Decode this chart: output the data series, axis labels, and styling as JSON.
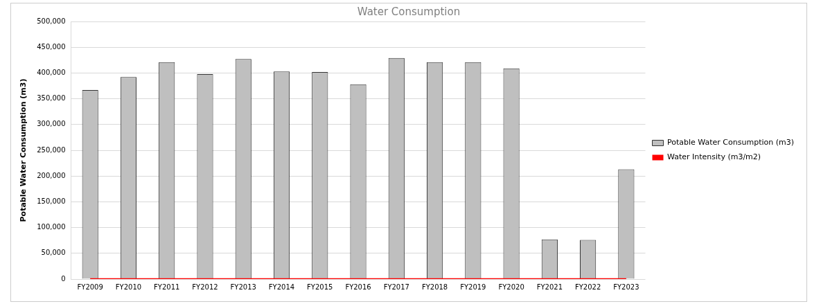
{
  "chart_data": {
    "type": "bar",
    "title": "Water Consumption",
    "ylabel": "Potable Water Consumption (m3)",
    "categories": [
      "FY2009",
      "FY2010",
      "FY2011",
      "FY2012",
      "FY2013",
      "FY2014",
      "FY2015",
      "FY2016",
      "FY2017",
      "FY2018",
      "FY2019",
      "FY2020",
      "FY2021",
      "FY2022",
      "FY2023"
    ],
    "series": [
      {
        "name": "Potable Water Consumption (m3)",
        "color": "#bfbfbf",
        "values": [
          367000,
          392000,
          421000,
          398000,
          427000,
          403000,
          402000,
          378000,
          429000,
          421000,
          421000,
          409000,
          77000,
          76000,
          213000
        ]
      },
      {
        "name": "Water Intensity (m3/m2)",
        "type": "line",
        "color": "#ff0000",
        "values": [
          0,
          0,
          0,
          0,
          0,
          0,
          0,
          0,
          0,
          0,
          0,
          0,
          0,
          0,
          0
        ]
      }
    ],
    "ylim": [
      0,
      500000
    ],
    "yticks": [
      0,
      {
        "value": 50000,
        "label": "50,000"
      },
      {
        "value": 100000,
        "label": "100,000"
      },
      {
        "value": 150000,
        "label": "150,000"
      },
      {
        "value": 200000,
        "label": "200,000"
      },
      {
        "value": 250000,
        "label": "250,000"
      },
      {
        "value": 300000,
        "label": "300,000"
      },
      {
        "value": 350000,
        "label": "350,000"
      },
      {
        "value": 400000,
        "label": "400,000"
      },
      {
        "value": 450000,
        "label": "450,000"
      },
      {
        "value": 500000,
        "label": "500,000"
      }
    ],
    "grid": "y",
    "legend": "right",
    "marker": "none"
  }
}
